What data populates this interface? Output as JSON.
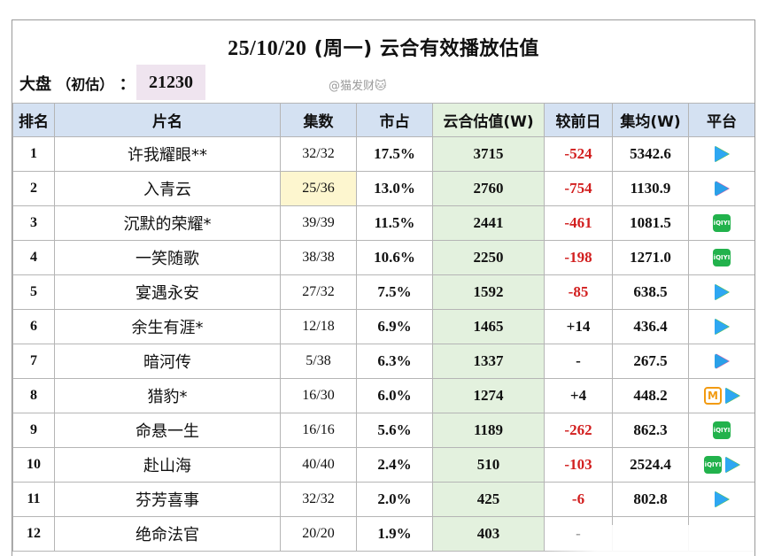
{
  "header": {
    "title_date": "25/10/20",
    "title_day": "(周一)",
    "title_text": "云合有效播放估值",
    "dapan_label": "大盘",
    "dapan_paren": "（初估）",
    "dapan_colon": "：",
    "dapan_value": "21230",
    "watermark": "@猫发财🐱"
  },
  "columns": [
    "排名",
    "片名",
    "集数",
    "市占",
    "云合估值(W)",
    "较前日",
    "集均(W)",
    "平台"
  ],
  "rows": [
    {
      "rank": "1",
      "name": "许我耀眼**",
      "eps": "32/32",
      "share": "17.5%",
      "est": "3715",
      "prev": "-524",
      "avg": "5342.6",
      "platforms": [
        "tencent-video-icon"
      ]
    },
    {
      "rank": "2",
      "name": "入青云",
      "eps": "25/36",
      "share": "13.0%",
      "est": "2760",
      "prev": "-754",
      "avg": "1130.9",
      "platforms": [
        "youku-icon"
      ]
    },
    {
      "rank": "3",
      "name": "沉默的荣耀*",
      "eps": "39/39",
      "share": "11.5%",
      "est": "2441",
      "prev": "-461",
      "avg": "1081.5",
      "platforms": [
        "iqiyi-icon"
      ]
    },
    {
      "rank": "4",
      "name": "一笑随歌",
      "eps": "38/38",
      "share": "10.6%",
      "est": "2250",
      "prev": "-198",
      "avg": "1271.0",
      "platforms": [
        "iqiyi-icon"
      ]
    },
    {
      "rank": "5",
      "name": "宴遇永安",
      "eps": "27/32",
      "share": "7.5%",
      "est": "1592",
      "prev": "-85",
      "avg": "638.5",
      "platforms": [
        "tencent-video-icon"
      ]
    },
    {
      "rank": "6",
      "name": "余生有涯*",
      "eps": "12/18",
      "share": "6.9%",
      "est": "1465",
      "prev": "+14",
      "avg": "436.4",
      "platforms": [
        "tencent-video-icon"
      ]
    },
    {
      "rank": "7",
      "name": "暗河传",
      "eps": "5/38",
      "share": "6.3%",
      "est": "1337",
      "prev": "-",
      "avg": "267.5",
      "platforms": [
        "youku-icon"
      ]
    },
    {
      "rank": "8",
      "name": "猎豹*",
      "eps": "16/30",
      "share": "6.0%",
      "est": "1274",
      "prev": "+4",
      "avg": "448.2",
      "platforms": [
        "mango-tv-icon",
        "tencent-video-icon"
      ]
    },
    {
      "rank": "9",
      "name": "命悬一生",
      "eps": "16/16",
      "share": "5.6%",
      "est": "1189",
      "prev": "-262",
      "avg": "862.3",
      "platforms": [
        "iqiyi-icon"
      ]
    },
    {
      "rank": "10",
      "name": "赴山海",
      "eps": "40/40",
      "share": "2.4%",
      "est": "510",
      "prev": "-103",
      "avg": "2524.4",
      "platforms": [
        "iqiyi-icon",
        "tencent-video-icon"
      ]
    },
    {
      "rank": "11",
      "name": "芬芳喜事",
      "eps": "32/32",
      "share": "2.0%",
      "est": "425",
      "prev": "-6",
      "avg": "802.8",
      "platforms": [
        "tencent-video-icon"
      ]
    },
    {
      "rank": "12",
      "name": "绝命法官",
      "eps": "20/20",
      "share": "1.9%",
      "est": "403",
      "prev": "-",
      "avg": "",
      "platforms": []
    }
  ],
  "iqiyi_icon_text": "iQIYI",
  "mango_icon_text": "M",
  "colors": {
    "header_bg": "#d4e1f2",
    "estimate_bg": "#e3f1de",
    "negative": "#d21f1f",
    "dapan_bg": "#efe4ef",
    "highlight_eps": "#fdf6cf"
  }
}
